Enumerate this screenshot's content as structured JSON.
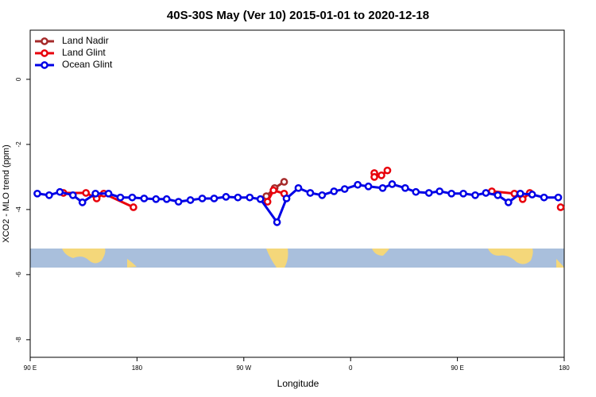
{
  "chart_data": {
    "type": "line",
    "title": "40S-30S May (Ver 10)   2015-01-01 to 2020-12-18",
    "x_label": "Longitude",
    "y_label": "XCO2 - MLO trend (ppm)",
    "xlim": [
      90,
      540
    ],
    "ylim": [
      -8.54,
      1.51
    ],
    "xticks": [
      {
        "value": 90,
        "label": "90 E"
      },
      180,
      {
        "value": 270,
        "label": "90 W"
      },
      {
        "value": 360,
        "label": "0"
      },
      {
        "value": 450,
        "label": "90 E"
      },
      {
        "value": 540,
        "label": "180"
      }
    ],
    "yticks": [
      -8,
      -6,
      -4,
      -2,
      0
    ],
    "legend": "top-left",
    "series": [
      {
        "name": "Land Nadir",
        "color": "#a52a2a",
        "x": [
          289,
          296,
          304
        ],
        "values": [
          -3.59,
          -3.34,
          -3.15
        ]
      },
      {
        "name": "Land Glint",
        "color": "#e8000b",
        "x": [
          118,
          137,
          146,
          152,
          177,
          null,
          290,
          295,
          304,
          null,
          380,
          380,
          386,
          391,
          null,
          479,
          498,
          505,
          511,
          null,
          537
        ],
        "values": [
          -3.49,
          -3.49,
          -3.66,
          -3.51,
          -3.93,
          null,
          -3.76,
          -3.41,
          -3.51,
          null,
          -2.88,
          -3.0,
          -2.95,
          -2.8,
          null,
          -3.44,
          -3.51,
          -3.68,
          -3.49,
          null,
          -3.93
        ]
      },
      {
        "name": "Ocean Glint",
        "color": "#0000e6",
        "x": [
          96,
          106,
          115,
          126,
          134,
          145,
          156,
          166,
          176,
          186,
          196,
          205,
          215,
          225,
          235,
          245,
          255,
          265,
          275,
          284,
          298,
          306,
          316,
          326,
          336,
          346,
          355,
          366,
          375,
          387,
          395,
          406,
          415,
          426,
          435,
          445,
          455,
          465,
          474,
          484,
          493,
          503,
          513,
          523,
          535
        ],
        "values": [
          -3.51,
          -3.56,
          -3.46,
          -3.56,
          -3.78,
          -3.51,
          -3.51,
          -3.63,
          -3.63,
          -3.66,
          -3.68,
          -3.68,
          -3.76,
          -3.71,
          -3.66,
          -3.66,
          -3.61,
          -3.63,
          -3.63,
          -3.68,
          -4.39,
          -3.66,
          -3.34,
          -3.49,
          -3.56,
          -3.44,
          -3.37,
          -3.24,
          -3.29,
          -3.34,
          -3.22,
          -3.34,
          -3.46,
          -3.49,
          -3.44,
          -3.51,
          -3.51,
          -3.56,
          -3.49,
          -3.56,
          -3.78,
          -3.51,
          -3.54,
          -3.63,
          -3.63
        ]
      }
    ]
  }
}
